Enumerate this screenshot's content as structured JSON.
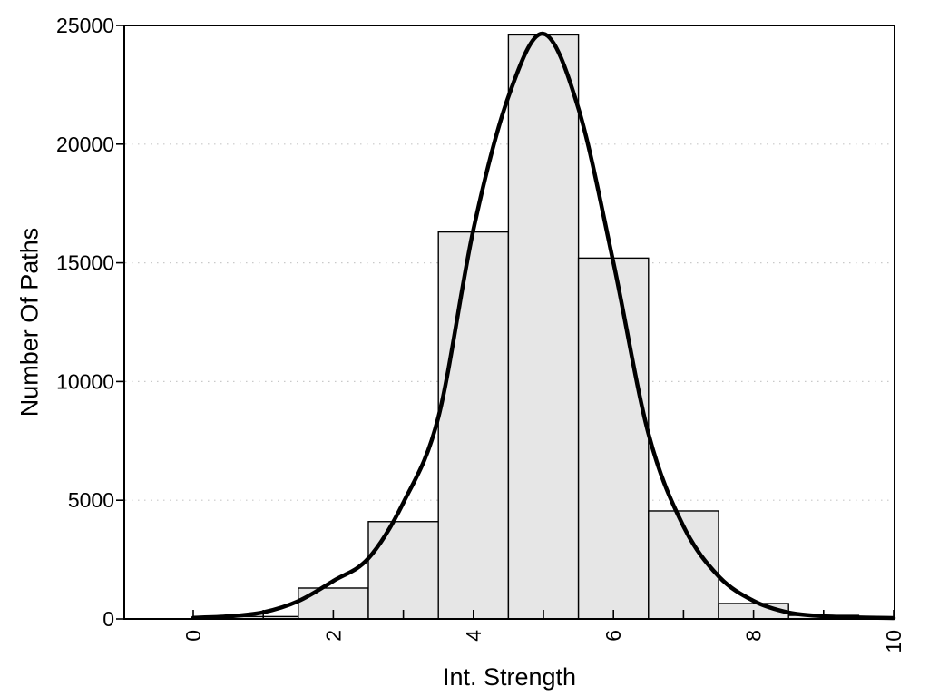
{
  "chart_data": {
    "type": "bar",
    "subtype": "histogram-with-density-curve",
    "title": "",
    "xlabel": "Int. Strength",
    "ylabel": "Number Of Paths",
    "xlim": [
      0,
      10
    ],
    "ylim": [
      0,
      25000
    ],
    "grid": "dotted-horizontal",
    "legend": null,
    "x_axis_tick_positions": [
      0,
      1,
      2,
      3,
      4,
      5,
      6,
      7,
      8,
      9,
      10
    ],
    "x_axis_labeled_ticks": [
      "0",
      "2",
      "4",
      "6",
      "8",
      "10"
    ],
    "x_axis_labeled_tick_values": [
      0,
      2,
      4,
      6,
      8,
      10
    ],
    "y_axis_ticks": [
      "0",
      "5000",
      "10000",
      "15000",
      "20000",
      "25000"
    ],
    "y_axis_tick_values": [
      0,
      5000,
      10000,
      15000,
      20000,
      25000
    ],
    "gridline_y_values": [
      5000,
      10000,
      15000,
      20000
    ],
    "bin_width": 1,
    "categories": [
      1,
      2,
      3,
      4,
      5,
      6,
      7,
      8,
      9
    ],
    "values": [
      100,
      1300,
      4100,
      16300,
      24600,
      15200,
      4550,
      650,
      150
    ],
    "density_curve_points": [
      [
        0,
        50
      ],
      [
        0.5,
        110
      ],
      [
        1,
        280
      ],
      [
        1.5,
        750
      ],
      [
        2,
        1600
      ],
      [
        2.5,
        2550
      ],
      [
        3,
        4900
      ],
      [
        3.5,
        8500
      ],
      [
        4,
        16400
      ],
      [
        4.5,
        22000
      ],
      [
        5,
        24650
      ],
      [
        5.5,
        21500
      ],
      [
        6,
        15000
      ],
      [
        6.5,
        7800
      ],
      [
        7,
        3900
      ],
      [
        7.5,
        1800
      ],
      [
        8,
        760
      ],
      [
        8.5,
        270
      ],
      [
        9,
        115
      ],
      [
        9.5,
        60
      ],
      [
        10,
        40
      ]
    ],
    "colors": {
      "background": "#ffffff",
      "bar_fill": "#e6e6e6",
      "bar_border": "#000000",
      "curve": "#000000",
      "grid": "#c9c9c9",
      "axis": "#000000",
      "text": "#000000"
    }
  }
}
